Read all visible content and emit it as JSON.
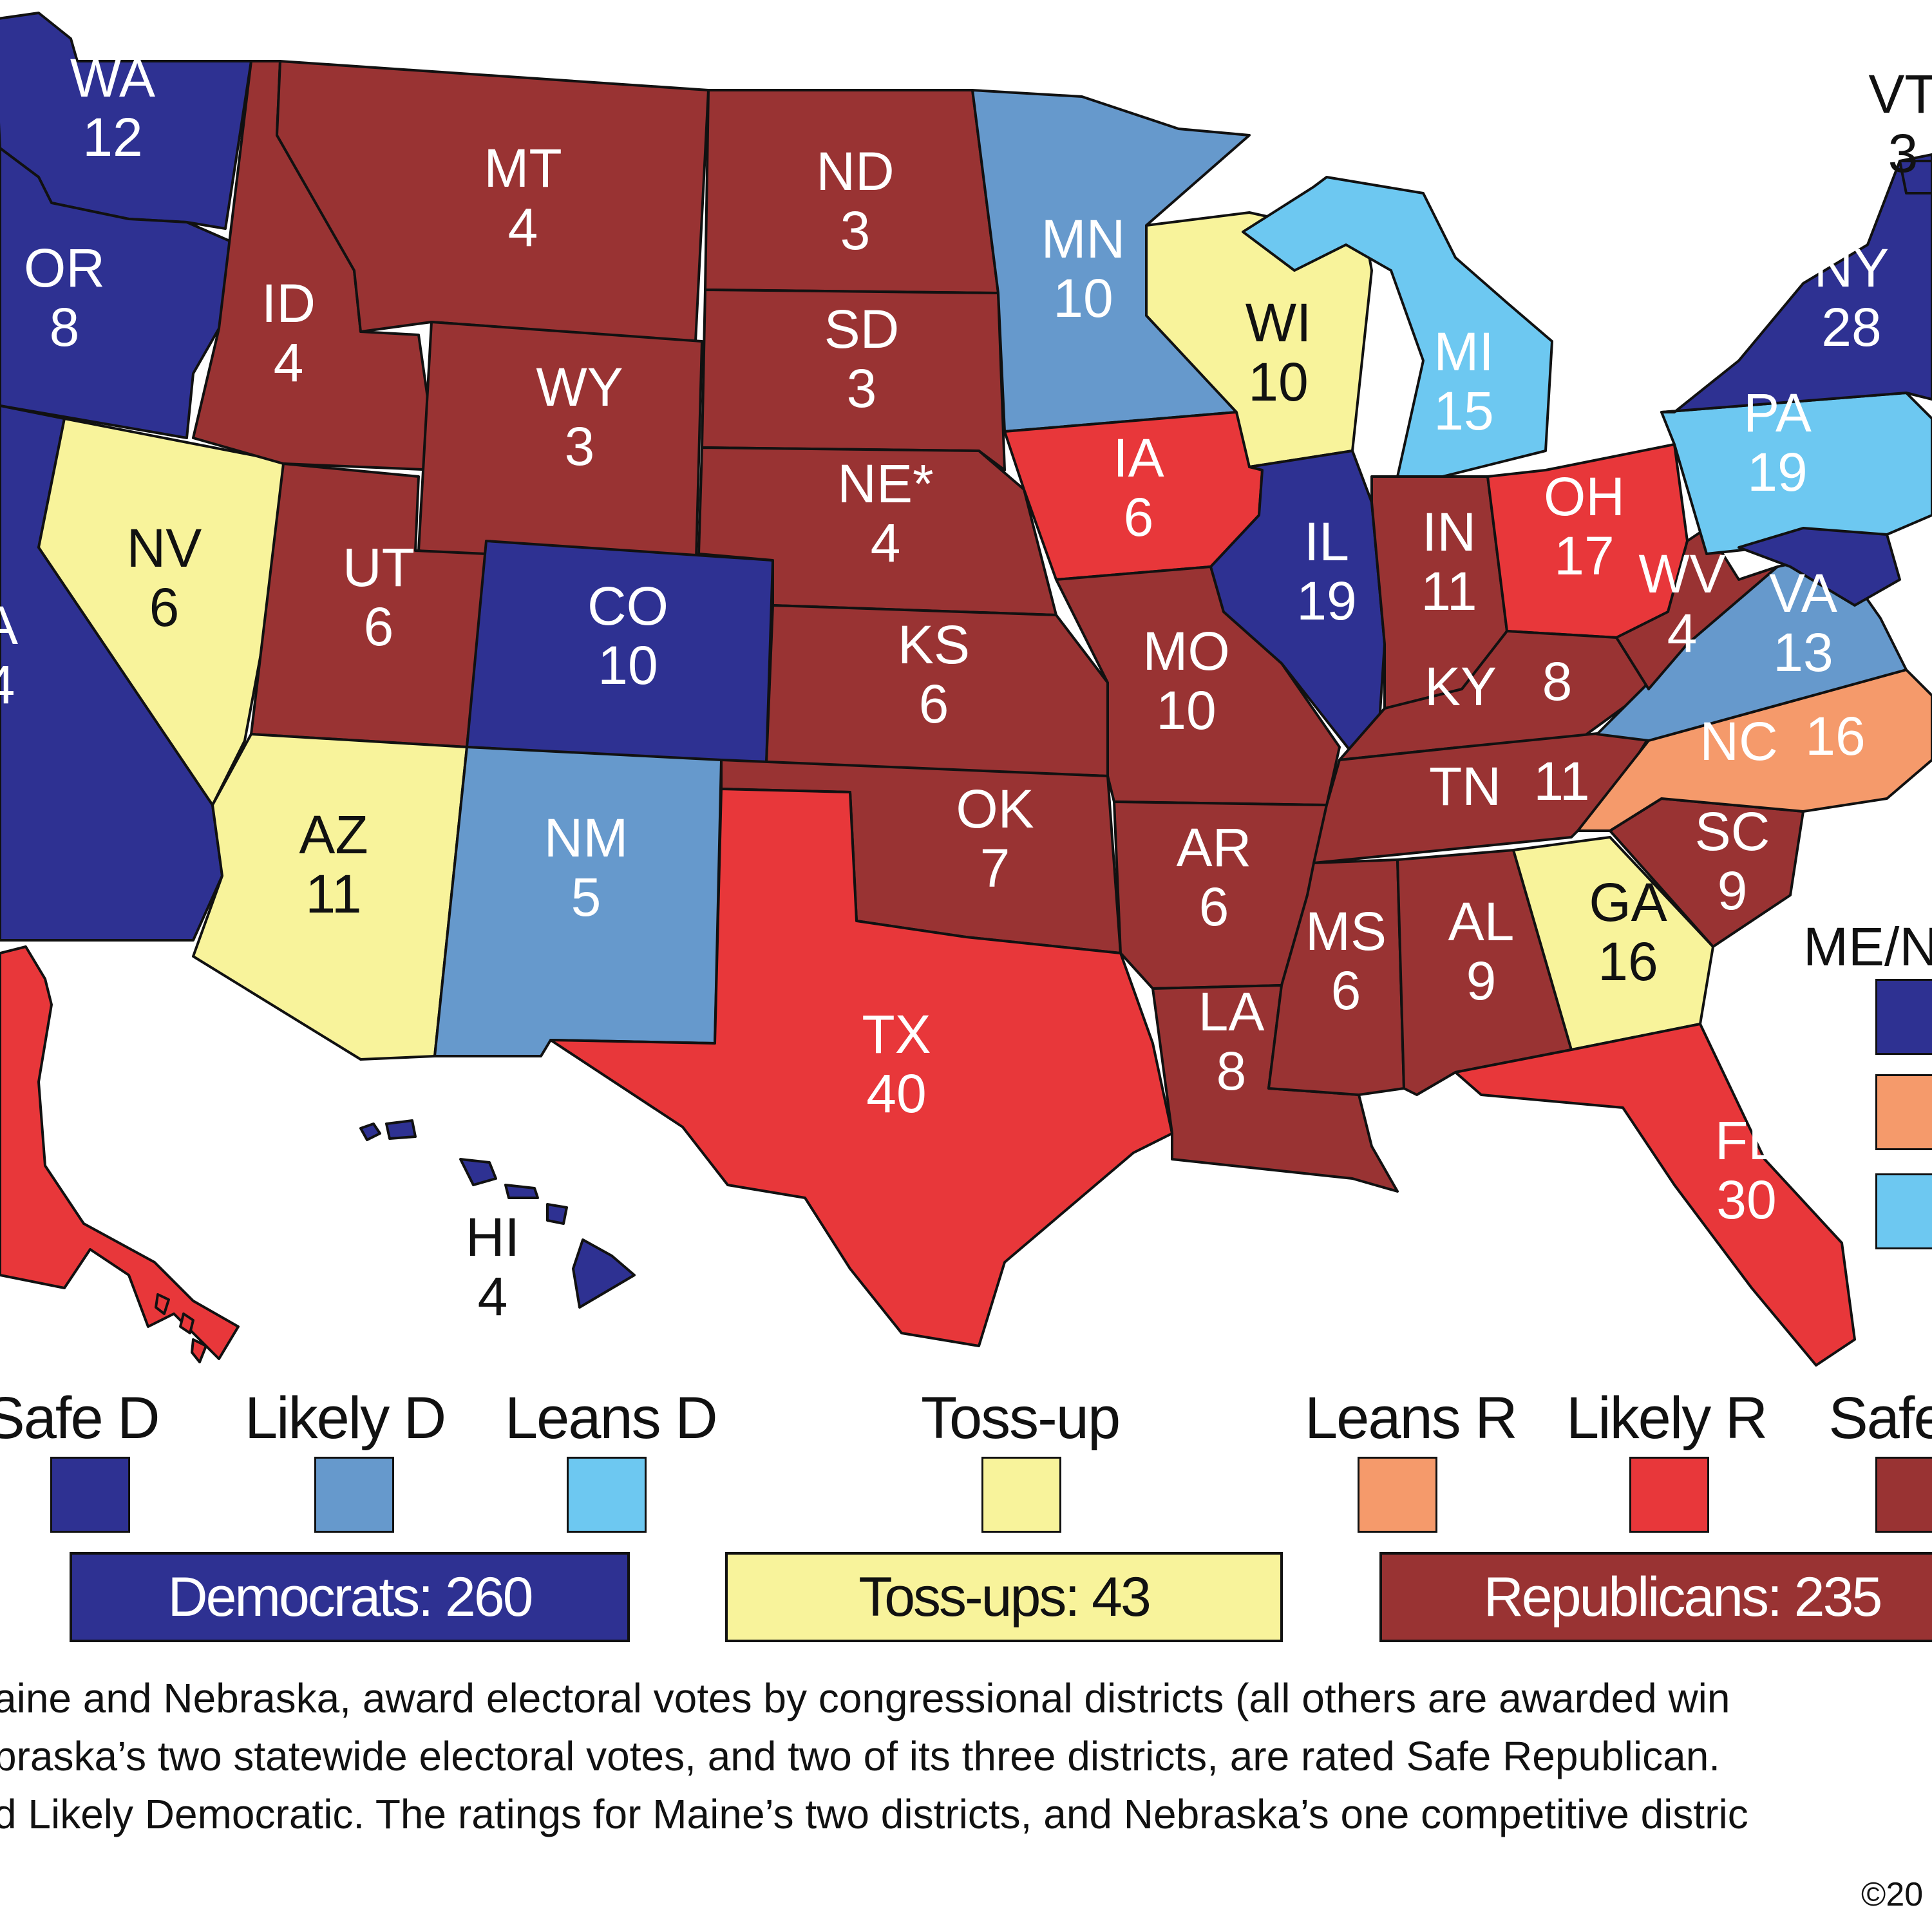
{
  "colors": {
    "safe_d": "#2e3192",
    "likely_d": "#6699cc",
    "leans_d": "#6dc8f1",
    "tossup": "#f8f39b",
    "leans_r": "#f59a6b",
    "likely_r": "#e8373a",
    "safe_r": "#993333"
  },
  "states": [
    {
      "abbr": "WA",
      "ev": "12",
      "rating": "safe_d"
    },
    {
      "abbr": "OR",
      "ev": "8",
      "rating": "safe_d"
    },
    {
      "abbr": "A",
      "ev": "4",
      "rating": "safe_d"
    },
    {
      "abbr": "NV",
      "ev": "6",
      "rating": "tossup"
    },
    {
      "abbr": "ID",
      "ev": "4",
      "rating": "safe_r"
    },
    {
      "abbr": "MT",
      "ev": "4",
      "rating": "safe_r"
    },
    {
      "abbr": "WY",
      "ev": "3",
      "rating": "safe_r"
    },
    {
      "abbr": "UT",
      "ev": "6",
      "rating": "safe_r"
    },
    {
      "abbr": "AZ",
      "ev": "11",
      "rating": "tossup"
    },
    {
      "abbr": "CO",
      "ev": "10",
      "rating": "safe_d"
    },
    {
      "abbr": "NM",
      "ev": "5",
      "rating": "likely_d"
    },
    {
      "abbr": "ND",
      "ev": "3",
      "rating": "safe_r"
    },
    {
      "abbr": "SD",
      "ev": "3",
      "rating": "safe_r"
    },
    {
      "abbr": "NE*",
      "ev": "4",
      "rating": "safe_r"
    },
    {
      "abbr": "KS",
      "ev": "6",
      "rating": "safe_r"
    },
    {
      "abbr": "OK",
      "ev": "7",
      "rating": "safe_r"
    },
    {
      "abbr": "TX",
      "ev": "40",
      "rating": "likely_r"
    },
    {
      "abbr": "MN",
      "ev": "10",
      "rating": "likely_d"
    },
    {
      "abbr": "IA",
      "ev": "6",
      "rating": "likely_r"
    },
    {
      "abbr": "MO",
      "ev": "10",
      "rating": "safe_r"
    },
    {
      "abbr": "AR",
      "ev": "6",
      "rating": "safe_r"
    },
    {
      "abbr": "LA",
      "ev": "8",
      "rating": "safe_r"
    },
    {
      "abbr": "WI",
      "ev": "10",
      "rating": "tossup"
    },
    {
      "abbr": "IL",
      "ev": "19",
      "rating": "safe_d"
    },
    {
      "abbr": "MI",
      "ev": "15",
      "rating": "leans_d"
    },
    {
      "abbr": "IN",
      "ev": "11",
      "rating": "safe_r"
    },
    {
      "abbr": "OH",
      "ev": "17",
      "rating": "likely_r"
    },
    {
      "abbr": "KY",
      "ev": "8",
      "rating": "safe_r"
    },
    {
      "abbr": "TN",
      "ev": "11",
      "rating": "safe_r"
    },
    {
      "abbr": "MS",
      "ev": "6",
      "rating": "safe_r"
    },
    {
      "abbr": "AL",
      "ev": "9",
      "rating": "safe_r"
    },
    {
      "abbr": "GA",
      "ev": "16",
      "rating": "tossup"
    },
    {
      "abbr": "FL",
      "ev": "30",
      "rating": "likely_r"
    },
    {
      "abbr": "SC",
      "ev": "9",
      "rating": "safe_r"
    },
    {
      "abbr": "NC",
      "ev": "16",
      "rating": "leans_r"
    },
    {
      "abbr": "VA",
      "ev": "13",
      "rating": "likely_d"
    },
    {
      "abbr": "WV",
      "ev": "4",
      "rating": "safe_r"
    },
    {
      "abbr": "PA",
      "ev": "19",
      "rating": "leans_d"
    },
    {
      "abbr": "NY",
      "ev": "28",
      "rating": "safe_d"
    },
    {
      "abbr": "VT",
      "ev": "3",
      "rating": "safe_d"
    },
    {
      "abbr": "HI",
      "ev": "4",
      "rating": "safe_d"
    },
    {
      "abbr": "AK",
      "ev": "",
      "rating": "likely_r"
    }
  ],
  "me_ne_label": "ME/N",
  "legend": [
    "Safe D",
    "Likely D",
    "Leans D",
    "Toss-up",
    "Leans R",
    "Likely R",
    "Safe"
  ],
  "totals": {
    "democrats": "Democrats: 260",
    "tossups": "Toss-ups: 43",
    "republicans": "Republicans: 235"
  },
  "notes": [
    "aine and Nebraska, award electoral votes by congressional districts (all others are awarded win",
    "braska’s two statewide electoral votes, and two of its three districts, are rated Safe Republican.",
    "d Likely Democratic. The ratings for Maine’s two districts, and Nebraska’s one competitive distric"
  ],
  "copyright": "©20"
}
